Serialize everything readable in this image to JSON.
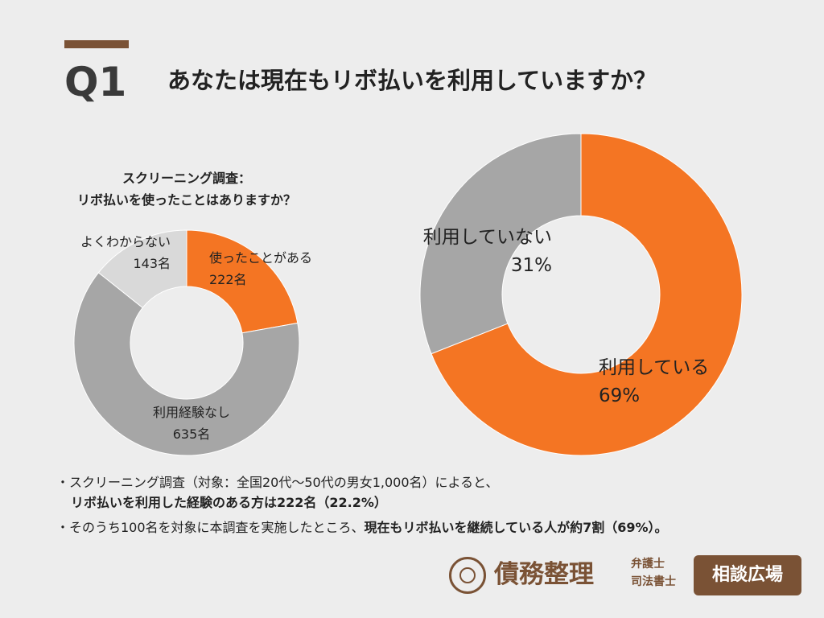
{
  "header": {
    "q_label": "Q1",
    "question": "あなたは現在もリボ払いを利用していますか？"
  },
  "colors": {
    "orange": "#f47523",
    "gray": "#a6a6a6",
    "lightgray": "#d9d9d9",
    "brown": "#7a5235"
  },
  "chart_data": [
    {
      "type": "pie",
      "title_lines": [
        "スクリーニング調査：",
        "リボ払いを使ったことはありますか？"
      ],
      "slices": [
        {
          "label": "使ったことがある",
          "value": 222,
          "value_label": "222名",
          "color": "#f47523"
        },
        {
          "label": "利用経験なし",
          "value": 635,
          "value_label": "635名",
          "color": "#a6a6a6"
        },
        {
          "label": "よくわからない",
          "value": 143,
          "value_label": "143名",
          "color": "#d9d9d9"
        }
      ]
    },
    {
      "type": "pie",
      "slices": [
        {
          "label": "利用している",
          "value": 69,
          "value_label": "69%",
          "color": "#f47523"
        },
        {
          "label": "利用していない",
          "value": 31,
          "value_label": "31%",
          "color": "#a6a6a6"
        }
      ]
    }
  ],
  "notes": {
    "line1": "・スクリーニング調査（対象：全国20代〜50代の男女1,000名）によると、",
    "line2_bold": "リボ払いを利用した経験のある方は222名（22.2%）",
    "line3_plain": "・そのうち100名を対象に本調査を実施したところ、",
    "line3_bold": "現在もリボ払いを継続している人が約7割（69%）。"
  },
  "logo": {
    "main": "債務整理",
    "sub_line1": "弁護士",
    "sub_line2": "司法書士",
    "badge": "相談広場"
  }
}
